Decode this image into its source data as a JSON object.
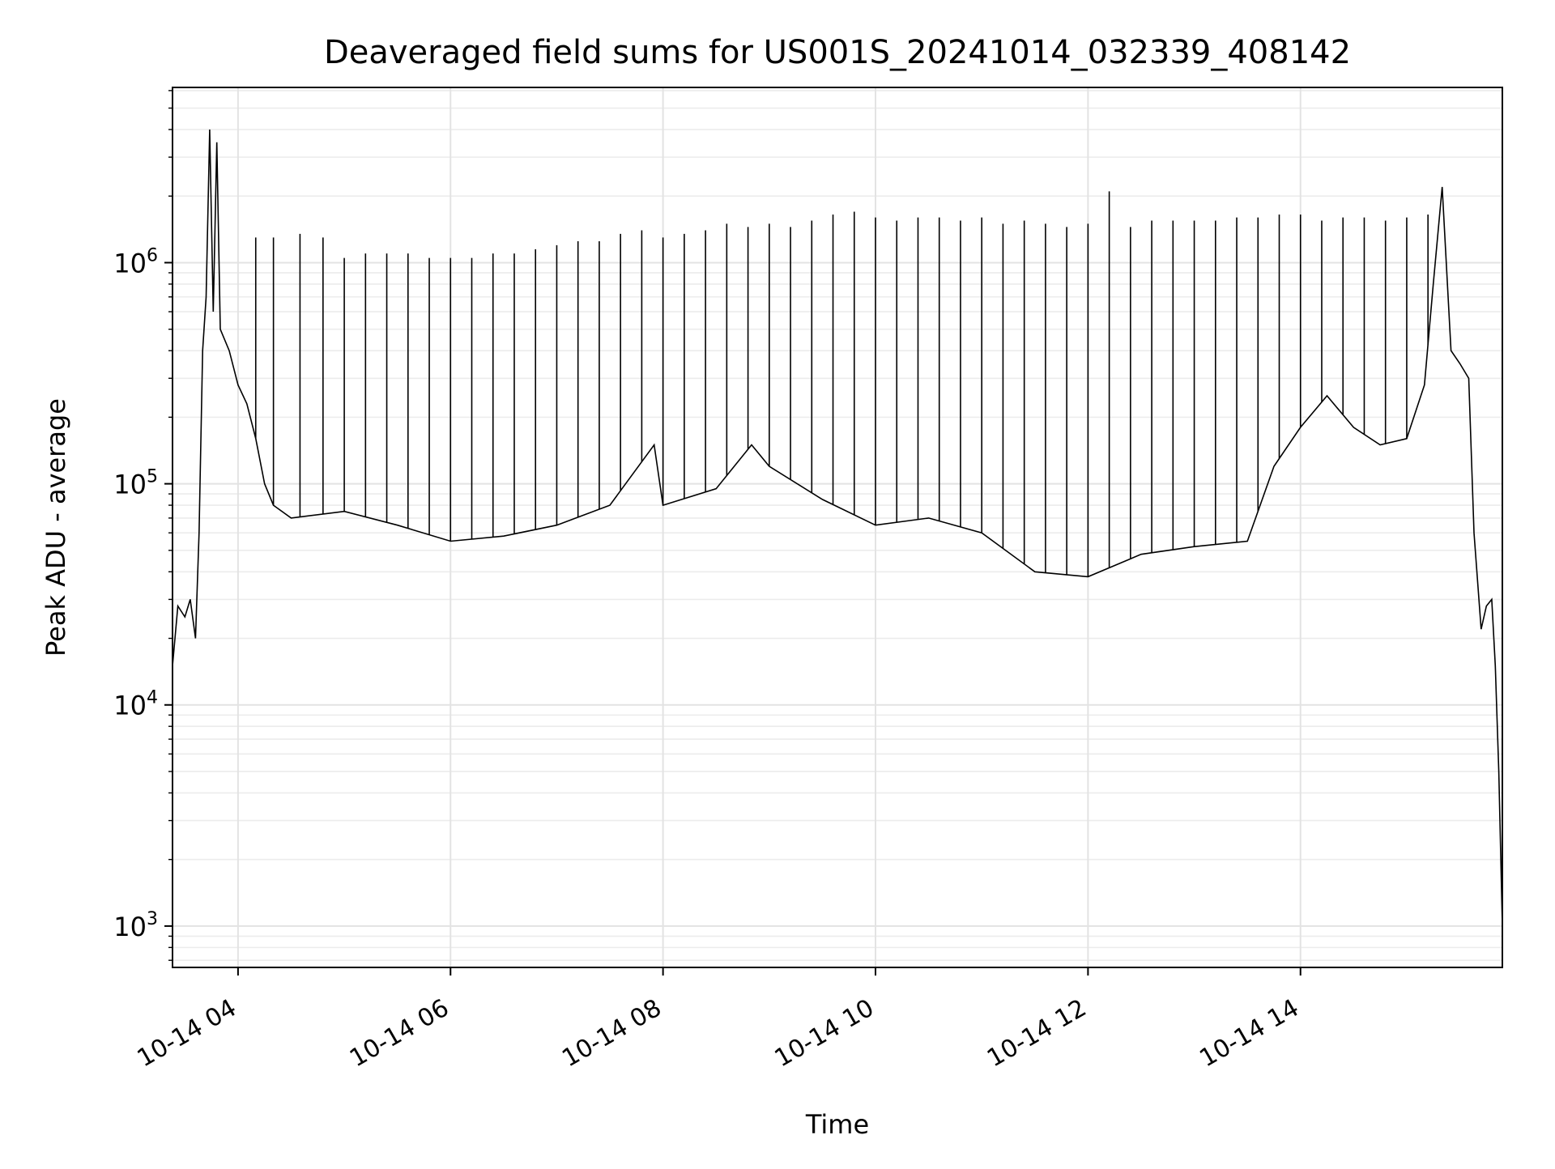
{
  "chart_data": {
    "type": "line",
    "title": "Deaveraged field sums for US001S_20241014_032339_408142",
    "xlabel": "Time",
    "ylabel": "Peak ADU - average",
    "yscale": "log",
    "ylim": [
      650,
      6200000
    ],
    "xlim": [
      "2024-10-14 03:23",
      "2024-10-14 15:54"
    ],
    "grid": true,
    "line_color": "#000000",
    "x_ticks": [
      {
        "value": "2024-10-14 04:00",
        "label": "10-14 04"
      },
      {
        "value": "2024-10-14 06:00",
        "label": "10-14 06"
      },
      {
        "value": "2024-10-14 08:00",
        "label": "10-14 08"
      },
      {
        "value": "2024-10-14 10:00",
        "label": "10-14 10"
      },
      {
        "value": "2024-10-14 12:00",
        "label": "10-14 12"
      },
      {
        "value": "2024-10-14 14:00",
        "label": "10-14 14"
      }
    ],
    "y_ticks": [
      {
        "value": 1000,
        "base": "10",
        "exp": "3"
      },
      {
        "value": 10000,
        "base": "10",
        "exp": "4"
      },
      {
        "value": 100000,
        "base": "10",
        "exp": "5"
      },
      {
        "value": 1000000,
        "base": "10",
        "exp": "6"
      }
    ],
    "series": [
      {
        "points": [
          [
            "2024-10-14 03:23",
            15000
          ],
          [
            "2024-10-14 03:26",
            28000
          ],
          [
            "2024-10-14 03:30",
            25000
          ],
          [
            "2024-10-14 03:33",
            30000
          ],
          [
            "2024-10-14 03:36",
            20000
          ],
          [
            "2024-10-14 03:38",
            60000
          ],
          [
            "2024-10-14 03:40",
            400000
          ],
          [
            "2024-10-14 03:42",
            700000
          ],
          [
            "2024-10-14 03:44",
            4000000
          ],
          [
            "2024-10-14 03:46",
            600000
          ],
          [
            "2024-10-14 03:48",
            3500000
          ],
          [
            "2024-10-14 03:50",
            500000
          ],
          [
            "2024-10-14 03:55",
            400000
          ],
          [
            "2024-10-14 04:00",
            280000
          ],
          [
            "2024-10-14 04:05",
            230000
          ],
          [
            "2024-10-14 04:10",
            160000
          ],
          [
            "2024-10-14 04:15",
            100000
          ],
          [
            "2024-10-14 04:20",
            80000
          ],
          [
            "2024-10-14 04:30",
            70000
          ],
          [
            "2024-10-14 05:00",
            75000
          ],
          [
            "2024-10-14 05:30",
            65000
          ],
          [
            "2024-10-14 06:00",
            55000
          ],
          [
            "2024-10-14 06:30",
            58000
          ],
          [
            "2024-10-14 07:00",
            65000
          ],
          [
            "2024-10-14 07:30",
            80000
          ],
          [
            "2024-10-14 07:55",
            150000
          ],
          [
            "2024-10-14 08:00",
            80000
          ],
          [
            "2024-10-14 08:30",
            95000
          ],
          [
            "2024-10-14 08:50",
            150000
          ],
          [
            "2024-10-14 09:00",
            120000
          ],
          [
            "2024-10-14 09:30",
            85000
          ],
          [
            "2024-10-14 10:00",
            65000
          ],
          [
            "2024-10-14 10:30",
            70000
          ],
          [
            "2024-10-14 11:00",
            60000
          ],
          [
            "2024-10-14 11:30",
            40000
          ],
          [
            "2024-10-14 12:00",
            38000
          ],
          [
            "2024-10-14 12:30",
            48000
          ],
          [
            "2024-10-14 13:00",
            52000
          ],
          [
            "2024-10-14 13:30",
            55000
          ],
          [
            "2024-10-14 13:45",
            120000
          ],
          [
            "2024-10-14 14:00",
            180000
          ],
          [
            "2024-10-14 14:15",
            250000
          ],
          [
            "2024-10-14 14:30",
            180000
          ],
          [
            "2024-10-14 14:45",
            150000
          ],
          [
            "2024-10-14 15:00",
            160000
          ],
          [
            "2024-10-14 15:10",
            280000
          ],
          [
            "2024-10-14 15:15",
            800000
          ],
          [
            "2024-10-14 15:20",
            2200000
          ],
          [
            "2024-10-14 15:25",
            400000
          ],
          [
            "2024-10-14 15:30",
            350000
          ],
          [
            "2024-10-14 15:35",
            300000
          ],
          [
            "2024-10-14 15:38",
            60000
          ],
          [
            "2024-10-14 15:42",
            22000
          ],
          [
            "2024-10-14 15:45",
            28000
          ],
          [
            "2024-10-14 15:48",
            30000
          ],
          [
            "2024-10-14 15:50",
            15000
          ],
          [
            "2024-10-14 15:52",
            5000
          ],
          [
            "2024-10-14 15:54",
            1000
          ]
        ],
        "spikes": [
          [
            "2024-10-14 04:10",
            1300000
          ],
          [
            "2024-10-14 04:20",
            1300000
          ],
          [
            "2024-10-14 04:35",
            1350000
          ],
          [
            "2024-10-14 04:48",
            1300000
          ],
          [
            "2024-10-14 05:00",
            1050000
          ],
          [
            "2024-10-14 05:12",
            1100000
          ],
          [
            "2024-10-14 05:24",
            1100000
          ],
          [
            "2024-10-14 05:36",
            1100000
          ],
          [
            "2024-10-14 05:48",
            1050000
          ],
          [
            "2024-10-14 06:00",
            1050000
          ],
          [
            "2024-10-14 06:12",
            1050000
          ],
          [
            "2024-10-14 06:24",
            1100000
          ],
          [
            "2024-10-14 06:36",
            1100000
          ],
          [
            "2024-10-14 06:48",
            1150000
          ],
          [
            "2024-10-14 07:00",
            1200000
          ],
          [
            "2024-10-14 07:12",
            1250000
          ],
          [
            "2024-10-14 07:24",
            1250000
          ],
          [
            "2024-10-14 07:36",
            1350000
          ],
          [
            "2024-10-14 07:48",
            1400000
          ],
          [
            "2024-10-14 08:00",
            1300000
          ],
          [
            "2024-10-14 08:12",
            1350000
          ],
          [
            "2024-10-14 08:24",
            1400000
          ],
          [
            "2024-10-14 08:36",
            1500000
          ],
          [
            "2024-10-14 08:48",
            1450000
          ],
          [
            "2024-10-14 09:00",
            1500000
          ],
          [
            "2024-10-14 09:12",
            1450000
          ],
          [
            "2024-10-14 09:24",
            1550000
          ],
          [
            "2024-10-14 09:36",
            1650000
          ],
          [
            "2024-10-14 09:48",
            1700000
          ],
          [
            "2024-10-14 10:00",
            1600000
          ],
          [
            "2024-10-14 10:12",
            1550000
          ],
          [
            "2024-10-14 10:24",
            1600000
          ],
          [
            "2024-10-14 10:36",
            1600000
          ],
          [
            "2024-10-14 10:48",
            1550000
          ],
          [
            "2024-10-14 11:00",
            1600000
          ],
          [
            "2024-10-14 11:12",
            1500000
          ],
          [
            "2024-10-14 11:24",
            1550000
          ],
          [
            "2024-10-14 11:36",
            1500000
          ],
          [
            "2024-10-14 11:48",
            1450000
          ],
          [
            "2024-10-14 12:00",
            1500000
          ],
          [
            "2024-10-14 12:12",
            2100000
          ],
          [
            "2024-10-14 12:24",
            1450000
          ],
          [
            "2024-10-14 12:36",
            1550000
          ],
          [
            "2024-10-14 12:48",
            1550000
          ],
          [
            "2024-10-14 13:00",
            1550000
          ],
          [
            "2024-10-14 13:12",
            1550000
          ],
          [
            "2024-10-14 13:24",
            1600000
          ],
          [
            "2024-10-14 13:36",
            1600000
          ],
          [
            "2024-10-14 13:48",
            1650000
          ],
          [
            "2024-10-14 14:00",
            1650000
          ],
          [
            "2024-10-14 14:12",
            1550000
          ],
          [
            "2024-10-14 14:24",
            1600000
          ],
          [
            "2024-10-14 14:36",
            1600000
          ],
          [
            "2024-10-14 14:48",
            1550000
          ],
          [
            "2024-10-14 15:00",
            1600000
          ],
          [
            "2024-10-14 15:12",
            1650000
          ]
        ]
      }
    ]
  }
}
